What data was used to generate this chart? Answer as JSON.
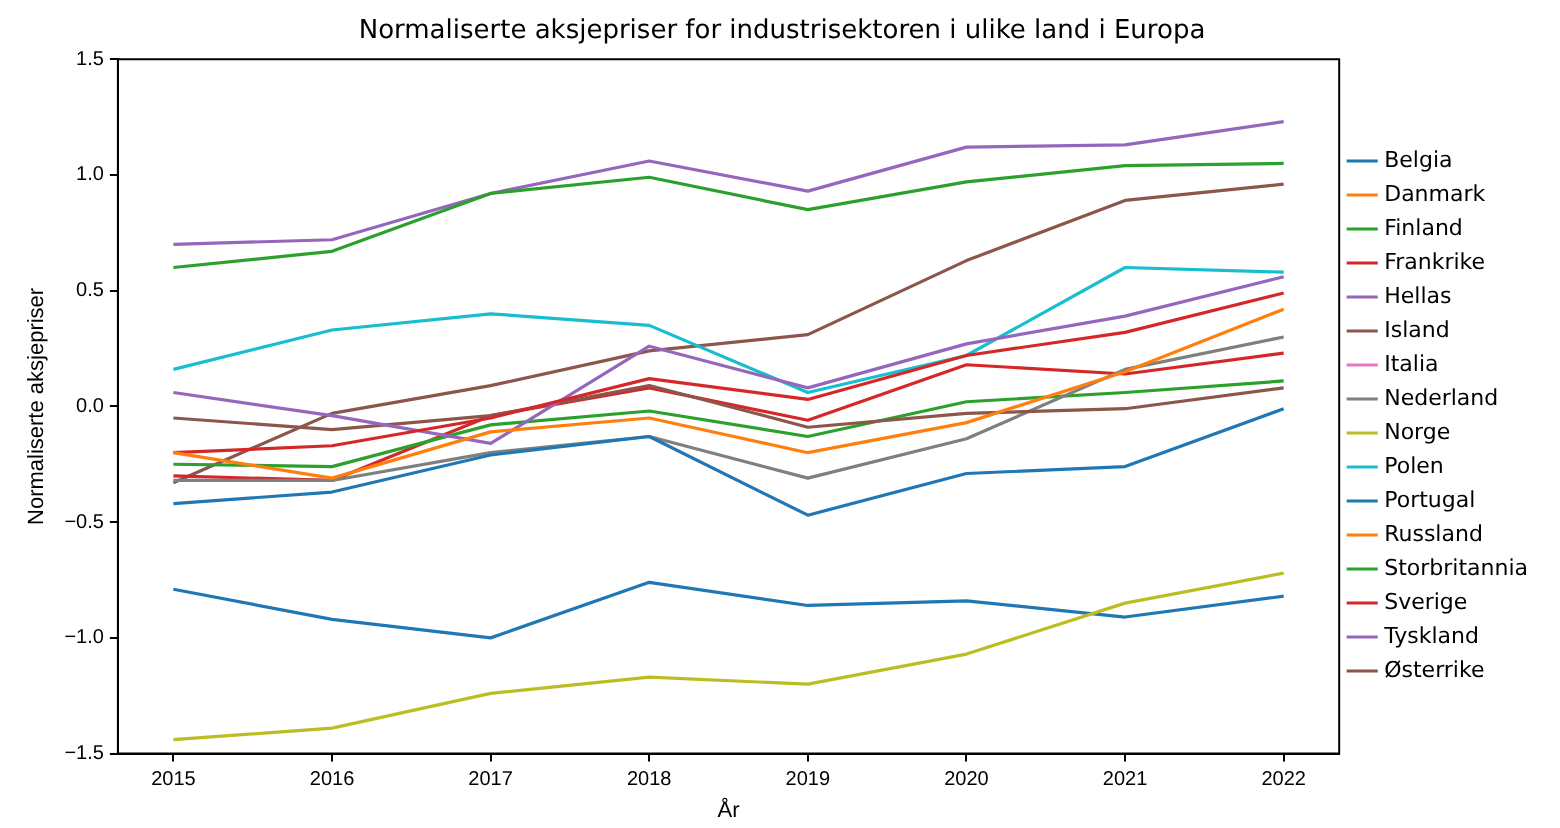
{
  "chart_data": {
    "type": "line",
    "title": "Normaliserte aksjepriser for industrisektoren i ulike land i Europa",
    "xlabel": "År",
    "ylabel": "Normaliserte aksjepriser",
    "x": [
      2015,
      2016,
      2017,
      2018,
      2019,
      2020,
      2021,
      2022
    ],
    "xlim": [
      2014.65,
      2022.35
    ],
    "xticks": [
      2015,
      2016,
      2017,
      2018,
      2019,
      2020,
      2021,
      2022
    ],
    "ylim": [
      -1.5,
      1.5
    ],
    "yticks": [
      {
        "value": -1.5,
        "label": "−1.5"
      },
      {
        "value": -1,
        "label": "−1.0"
      },
      {
        "value": -0.5,
        "label": "−0.5"
      },
      {
        "value": 0,
        "label": "0.0"
      },
      {
        "value": 0.5,
        "label": "0.5"
      },
      {
        "value": 1,
        "label": "1.0"
      },
      {
        "value": 1.5,
        "label": "1.5"
      }
    ],
    "grid": false,
    "legend": "right",
    "marker": "none",
    "line_style": "solid",
    "series": [
      {
        "name": "Belgia",
        "color": "#1f77b4",
        "values": [
          -0.42,
          -0.37,
          -0.21,
          -0.13,
          -0.47,
          -0.29,
          -0.26,
          -0.01
        ]
      },
      {
        "name": "Danmark",
        "color": "#ff7f0e",
        "values": [
          -0.2,
          -0.31,
          -0.11,
          -0.05,
          -0.2,
          -0.07,
          0.15,
          0.42
        ]
      },
      {
        "name": "Finland",
        "color": "#2ca02c",
        "values": [
          0.6,
          0.67,
          0.92,
          0.99,
          0.85,
          0.97,
          1.04,
          1.05
        ]
      },
      {
        "name": "Frankrike",
        "color": "#d62728",
        "values": [
          -0.2,
          -0.17,
          -0.05,
          0.12,
          0.03,
          0.22,
          0.32,
          0.49
        ]
      },
      {
        "name": "Hellas",
        "color": "#9467bd",
        "values": [
          0.06,
          -0.04,
          -0.16,
          0.26,
          0.08,
          0.27,
          0.39,
          0.56
        ]
      },
      {
        "name": "Island",
        "color": "#8c564b",
        "values": [
          -0.05,
          -0.1,
          -0.04,
          0.09,
          -0.09,
          -0.03,
          -0.01,
          0.08
        ]
      },
      {
        "name": "Italia",
        "color": "#e377c2",
        "values": [
          null,
          null,
          null,
          null,
          null,
          null,
          null,
          null
        ]
      },
      {
        "name": "Nederland",
        "color": "#7f7f7f",
        "values": [
          -0.32,
          -0.32,
          -0.2,
          -0.13,
          -0.31,
          -0.14,
          0.16,
          0.3
        ]
      },
      {
        "name": "Norge",
        "color": "#bcbd22",
        "values": [
          -1.44,
          -1.39,
          -1.24,
          -1.17,
          -1.2,
          -1.07,
          -0.85,
          -0.72
        ]
      },
      {
        "name": "Polen",
        "color": "#17becf",
        "values": [
          0.16,
          0.33,
          0.4,
          0.35,
          0.06,
          0.22,
          0.6,
          0.58
        ]
      },
      {
        "name": "Portugal",
        "color": "#1f77b4",
        "values": [
          -0.79,
          -0.92,
          -1.0,
          -0.76,
          -0.86,
          -0.84,
          -0.91,
          -0.82
        ]
      },
      {
        "name": "Russland",
        "color": "#ff7f0e",
        "values": [
          null,
          null,
          null,
          null,
          null,
          null,
          null,
          null
        ]
      },
      {
        "name": "Storbritannia",
        "color": "#2ca02c",
        "values": [
          -0.25,
          -0.26,
          -0.08,
          -0.02,
          -0.13,
          0.02,
          0.06,
          0.11
        ]
      },
      {
        "name": "Sverige",
        "color": "#d62728",
        "values": [
          -0.3,
          -0.32,
          -0.04,
          0.08,
          -0.06,
          0.18,
          0.14,
          0.23
        ]
      },
      {
        "name": "Tyskland",
        "color": "#9467bd",
        "values": [
          0.7,
          0.72,
          0.92,
          1.06,
          0.93,
          1.12,
          1.13,
          1.23
        ]
      },
      {
        "name": "Østerrike",
        "color": "#8c564b",
        "values": [
          -0.33,
          -0.03,
          0.09,
          0.24,
          0.31,
          0.63,
          0.89,
          0.96
        ]
      }
    ]
  }
}
